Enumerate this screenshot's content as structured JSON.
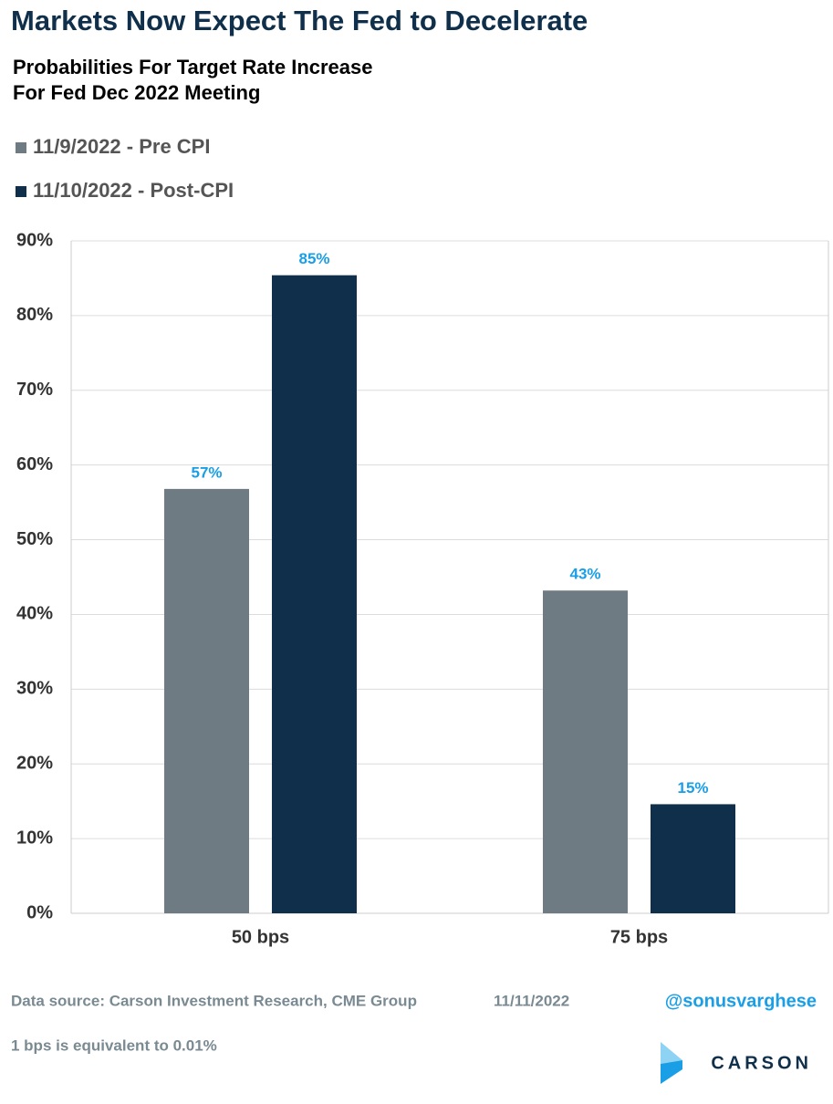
{
  "chart_data": {
    "type": "bar",
    "title": "Markets Now Expect The Fed to Decelerate",
    "subtitle": [
      "Probabilities For Target Rate Increase",
      "For Fed Dec 2022 Meeting"
    ],
    "categories": [
      "50 bps",
      "75 bps"
    ],
    "series": [
      {
        "name": "11/9/2022 - Pre CPI",
        "color": "#6e7b82",
        "values": [
          56.8,
          43.2
        ],
        "value_labels": [
          "57%",
          "43%"
        ]
      },
      {
        "name": "11/10/2022 - Post-CPI",
        "color": "#0f2f4a",
        "values": [
          85.4,
          14.6
        ],
        "value_labels": [
          "85%",
          "15%"
        ]
      }
    ],
    "ylim": [
      0,
      90
    ],
    "yticks": [
      {
        "value": 0,
        "label": "0%"
      },
      {
        "value": 10,
        "label": "10%"
      },
      {
        "value": 20,
        "label": "20%"
      },
      {
        "value": 30,
        "label": "30%"
      },
      {
        "value": 40,
        "label": "40%"
      },
      {
        "value": 50,
        "label": "50%"
      },
      {
        "value": 60,
        "label": "60%"
      },
      {
        "value": 70,
        "label": "70%"
      },
      {
        "value": 80,
        "label": "80%"
      },
      {
        "value": 90,
        "label": "90%"
      }
    ],
    "grid": true,
    "legend": "top-left",
    "source": "Data source: Carson Investment Research, CME Group",
    "date": "11/11/2022",
    "handle": "@sonusvarghese",
    "note": "1 bps is equivalent to 0.01%",
    "logo": "CARSON"
  }
}
